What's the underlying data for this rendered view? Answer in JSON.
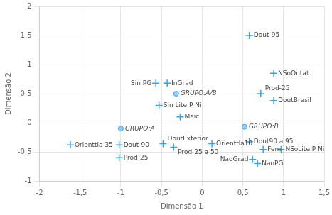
{
  "chart_data": {
    "type": "scatter",
    "xlabel": "Dimensão 1",
    "ylabel": "Dimensão 2",
    "points": [
      {
        "x": -1.62,
        "y": -0.38,
        "label": "Orienttla 35",
        "marker": "cross"
      },
      {
        "x": -1.0,
        "y": -0.1,
        "label": "GRUPO:A",
        "marker": "circle"
      },
      {
        "x": -1.02,
        "y": -0.38,
        "label": "Dout-90",
        "marker": "cross"
      },
      {
        "x": -1.02,
        "y": -0.6,
        "label": "Prod-25",
        "marker": "cross"
      },
      {
        "x": -0.57,
        "y": 0.68,
        "label": "Sin PG",
        "marker": "cross"
      },
      {
        "x": -0.53,
        "y": 0.3,
        "label": "Sin Lite P Ni",
        "marker": "cross"
      },
      {
        "x": -0.43,
        "y": 0.68,
        "label": "InGrad",
        "marker": "cross"
      },
      {
        "x": -0.32,
        "y": 0.5,
        "label": "GRUPO:A/B",
        "marker": "circle"
      },
      {
        "x": -0.27,
        "y": 0.1,
        "label": "Maic",
        "marker": "cross"
      },
      {
        "x": -0.48,
        "y": -0.36,
        "label": "DoutExterior",
        "marker": "cross"
      },
      {
        "x": -0.35,
        "y": -0.42,
        "label": "Prod 25 a 50",
        "marker": "cross"
      },
      {
        "x": 0.12,
        "y": -0.36,
        "label": "Orienttla10",
        "marker": "cross"
      },
      {
        "x": 0.58,
        "y": 1.5,
        "label": "Dout-95",
        "marker": "cross"
      },
      {
        "x": 0.52,
        "y": -0.07,
        "label": "GRUPO:B",
        "marker": "circle"
      },
      {
        "x": 0.58,
        "y": -0.33,
        "label": "Dout90 a 95",
        "marker": "cross"
      },
      {
        "x": 0.62,
        "y": -0.63,
        "label": "NaoGrad",
        "marker": "cross"
      },
      {
        "x": 0.68,
        "y": -0.7,
        "label": "NaoPG",
        "marker": "cross"
      },
      {
        "x": 0.72,
        "y": 0.5,
        "label": "Prod-25",
        "marker": "cross"
      },
      {
        "x": 0.75,
        "y": -0.46,
        "label": "Fem",
        "marker": "cross"
      },
      {
        "x": 0.88,
        "y": 0.85,
        "label": "NSoOutat",
        "marker": "cross"
      },
      {
        "x": 0.88,
        "y": 0.38,
        "label": "DoutBrasil",
        "marker": "cross"
      },
      {
        "x": 0.97,
        "y": -0.46,
        "label": "NSoLite P Ni",
        "marker": "cross"
      }
    ],
    "xlim": [
      -2,
      1.5
    ],
    "ylim": [
      -1,
      2
    ],
    "xticks": [
      -2,
      {
        "value": -1.5,
        "label": "-1,5"
      },
      -1,
      {
        "value": -0.5,
        "label": "-0,5"
      },
      0,
      {
        "value": 0.5,
        "label": "0,5"
      },
      1,
      {
        "value": 1.5,
        "label": "1,5"
      }
    ],
    "yticks": [
      -1,
      {
        "value": -0.5,
        "label": "-0,5"
      },
      0,
      {
        "value": 0.5,
        "label": "0,5"
      },
      1,
      {
        "value": 1.5,
        "label": "1,5"
      },
      2
    ],
    "grid": true
  }
}
